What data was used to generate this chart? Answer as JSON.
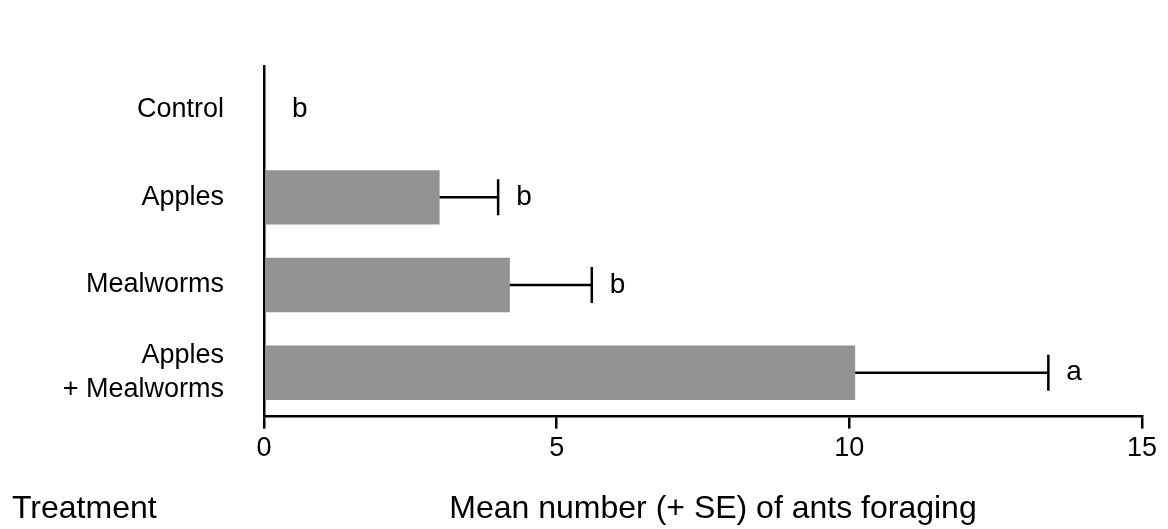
{
  "chart_data": {
    "type": "bar",
    "orientation": "horizontal",
    "xlabel": "Mean number (+ SE) of ants foraging",
    "ylabel": "Treatment",
    "categories": [
      "Control",
      "Apples",
      "Mealworms",
      "Apples\n+ Mealworms"
    ],
    "values": [
      0,
      3.0,
      4.2,
      10.1
    ],
    "color": "#939393",
    "errors": [
      null,
      [
        3.0,
        4.0
      ],
      [
        4.2,
        5.6
      ],
      [
        10.1,
        13.4
      ]
    ],
    "xlim": [
      0,
      15
    ],
    "xticks": [
      0,
      5,
      10,
      15
    ],
    "grid": false,
    "legend": false,
    "annotations": [
      "b",
      "b",
      "b",
      "a"
    ]
  }
}
